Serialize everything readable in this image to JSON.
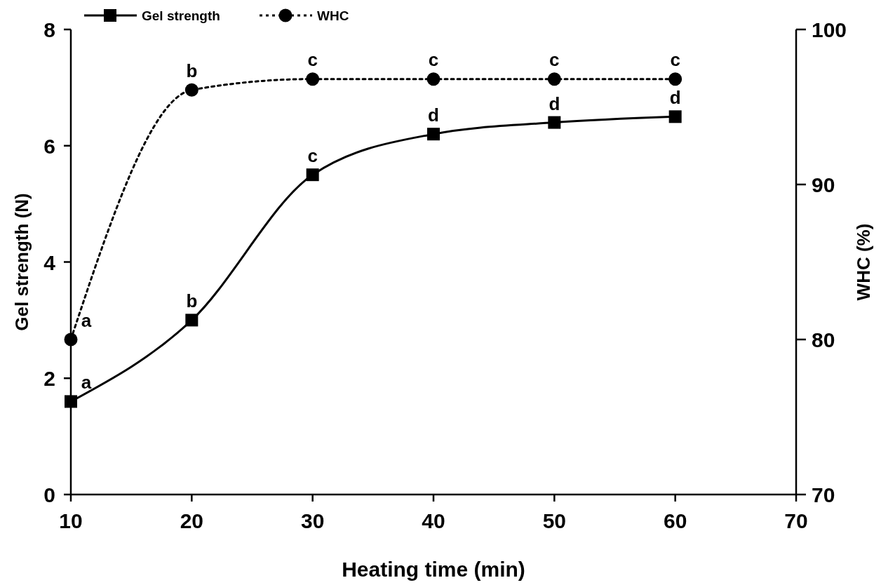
{
  "chart_data": {
    "type": "line",
    "xlabel": "Heating time (min)",
    "ylabel": "Gel strength  (N)",
    "y2label": "WHC (%)",
    "x": [
      10,
      20,
      30,
      40,
      50,
      60
    ],
    "series": [
      {
        "name": "Gel strength",
        "color": "#000000",
        "values": [
          1.6,
          3.0,
          5.5,
          6.2,
          6.4,
          6.5
        ],
        "marker": "square",
        "line_style": "solid"
      },
      {
        "name": "WHC",
        "color": "#000000",
        "values": [
          80,
          96.1,
          96.8,
          96.8,
          96.8,
          96.8
        ],
        "marker": "circle",
        "line_style": "dotted",
        "axis": "y2"
      }
    ],
    "xlim": [
      10,
      70
    ],
    "xticks": [
      10,
      20,
      30,
      40,
      50,
      60,
      70
    ],
    "ylim": [
      0,
      8
    ],
    "yticks": [
      0,
      2,
      4,
      6,
      8
    ],
    "y2lim": [
      70,
      100
    ],
    "y2ticks": [
      70,
      80,
      90,
      100
    ],
    "annotations": [
      {
        "text": "a",
        "x": 10,
        "y": 1.6
      },
      {
        "text": "b",
        "x": 20,
        "y": 3.0
      },
      {
        "text": "c",
        "x": 30,
        "y": 5.5
      },
      {
        "text": "d",
        "x": 40,
        "y": 6.2
      },
      {
        "text": "d",
        "x": 50,
        "y": 6.4
      },
      {
        "text": "d",
        "x": 60,
        "y": 6.5
      },
      {
        "text": "a",
        "x": 10,
        "y": 2.67
      },
      {
        "text": "b",
        "x": 20,
        "y": 6.96
      },
      {
        "text": "c",
        "x": 30,
        "y": 7.15
      },
      {
        "text": "c",
        "x": 40,
        "y": 7.15
      },
      {
        "text": "c",
        "x": 50,
        "y": 7.15
      },
      {
        "text": "c",
        "x": 60,
        "y": 7.15
      }
    ],
    "grid": false,
    "legend": "top left"
  }
}
